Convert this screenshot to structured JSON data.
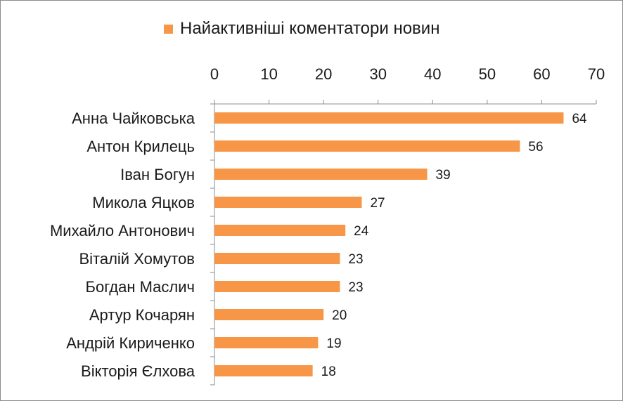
{
  "chart_data": {
    "type": "bar",
    "orientation": "horizontal",
    "title": "",
    "xlabel": "",
    "ylabel": "",
    "xlim": [
      0,
      70
    ],
    "xticks": [
      0,
      10,
      20,
      30,
      40,
      50,
      60,
      70
    ],
    "x_axis_position": "top",
    "grid": false,
    "legend": "top",
    "categories": [
      "Анна Чайковська",
      "Антон Крилець",
      "Іван Богун",
      "Микола Яцков",
      "Михайло Антонович",
      "Віталій Хомутов",
      "Богдан Маслич",
      "Артур Кочарян",
      "Андрій Кириченко",
      "Вікторія Єлхова"
    ],
    "series": [
      {
        "name": "Найактивніші коментатори новин",
        "color": "#f79646",
        "values": [
          64,
          56,
          39,
          27,
          24,
          23,
          23,
          20,
          19,
          18
        ]
      }
    ]
  }
}
